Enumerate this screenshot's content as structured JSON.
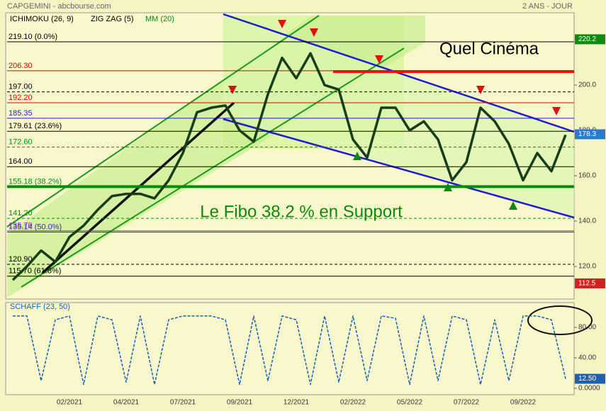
{
  "header": {
    "title": "CAPGEMINI - abcbourse.com",
    "period": "2 ANS - JOUR",
    "indicators": [
      "ICHIMOKU (26, 9)",
      "ZIG ZAG (5)",
      "MM (20)"
    ]
  },
  "chart_data": [
    {
      "type": "line",
      "annotations": [
        "Quel Cinéma",
        "Le Fibo 38.2 % en Support"
      ],
      "categories": [
        null,
        null,
        null,
        null,
        "02/2021",
        null,
        null,
        null,
        "04/2021",
        null,
        null,
        null,
        "07/2021",
        null,
        null,
        null,
        "09/2021",
        null,
        null,
        null,
        "12/2021",
        null,
        null,
        null,
        "02/2022",
        null,
        null,
        null,
        "05/2022",
        null,
        null,
        null,
        "07/2022",
        null,
        null,
        null,
        "09/2022",
        null,
        null,
        null
      ],
      "series": [
        {
          "name": "CAPGEMINI",
          "color": "#173d17",
          "values": [
            114,
            120,
            127,
            122,
            133,
            138,
            145,
            151,
            152,
            152,
            150,
            158,
            170,
            188,
            190,
            191,
            180,
            175,
            196,
            212,
            203,
            214,
            200,
            198,
            176,
            168,
            190,
            190,
            180,
            184,
            176,
            158,
            166,
            190,
            184,
            174,
            158,
            170,
            162,
            178
          ]
        }
      ],
      "ylim": [
        105.6,
        231.9
      ],
      "yticks": [
        {
          "value": 120,
          "label": "120.0"
        },
        {
          "value": 140,
          "label": "140.0"
        },
        {
          "value": 160,
          "label": "160.0"
        },
        {
          "value": 180,
          "label": "180.0"
        },
        {
          "value": 200,
          "label": "200.0"
        }
      ],
      "levels": [
        {
          "value": 219.1,
          "label": "219.10 (0.0%)",
          "color": "#000000",
          "style": "solid"
        },
        {
          "value": 206.3,
          "label": "206.30",
          "color": "#e00000",
          "style": "solid"
        },
        {
          "value": 197,
          "label": "197.00",
          "color": "#000000",
          "style": "dashed"
        },
        {
          "value": 192.2,
          "label": "192.20",
          "color": "#e00000",
          "style": "solid"
        },
        {
          "value": 185.35,
          "label": "185.35",
          "color": "#1c1cd0",
          "style": "solid"
        },
        {
          "value": 179.61,
          "label": "179.61 (23.6%)",
          "color": "#000000",
          "style": "solid"
        },
        {
          "value": 172.6,
          "label": "172.60",
          "color": "#0a8a0a",
          "style": "dashed"
        },
        {
          "value": 164,
          "label": "164.00",
          "color": "#000000",
          "style": "solid"
        },
        {
          "value": 155.18,
          "label": "155.18 (38.2%)",
          "color": "#0a8a0a",
          "style": "thick"
        },
        {
          "value": 141.2,
          "label": "141.20",
          "color": "#0a8a0a",
          "style": "dashed"
        },
        {
          "value": 135.14,
          "label": "135.14 (50.0%)",
          "color": "#3a2a9a",
          "style": "solid"
        },
        {
          "value": 135.7,
          "label": "135.70",
          "color": "#8a2ad0",
          "style": "solid"
        },
        {
          "value": 120.9,
          "label": "120.90",
          "color": "#000000",
          "style": "dashed"
        },
        {
          "value": 115.7,
          "label": "115.70 (61.8%)",
          "color": "#000000",
          "style": "solid"
        }
      ],
      "price_tags": [
        {
          "value": 220.2,
          "color": "#108a10"
        },
        {
          "value": 178.3,
          "color": "#2a7ad0"
        },
        {
          "value": 112.5,
          "color": "#d02020"
        }
      ]
    },
    {
      "type": "line",
      "title": "SCHAFF (23, 50)",
      "series": [
        {
          "name": "SCHAFF",
          "color": "#1f5fb0",
          "values": [
            95,
            95,
            10,
            90,
            95,
            5,
            95,
            90,
            8,
            95,
            5,
            90,
            95,
            95,
            95,
            90,
            5,
            95,
            10,
            95,
            90,
            5,
            95,
            8,
            95,
            10,
            95,
            92,
            5,
            95,
            10,
            95,
            90,
            5,
            90,
            10,
            95,
            95,
            90,
            12.5
          ]
        }
      ],
      "ylim": [
        -8.4,
        112.6
      ],
      "yticks": [
        {
          "value": 0,
          "label": "0.0000"
        },
        {
          "value": 40,
          "label": "40.00"
        },
        {
          "value": 80,
          "label": "80.00"
        }
      ],
      "price_tags": [
        {
          "value": 12.5,
          "label": "12.50",
          "color": "#1f5fb0"
        }
      ]
    }
  ]
}
